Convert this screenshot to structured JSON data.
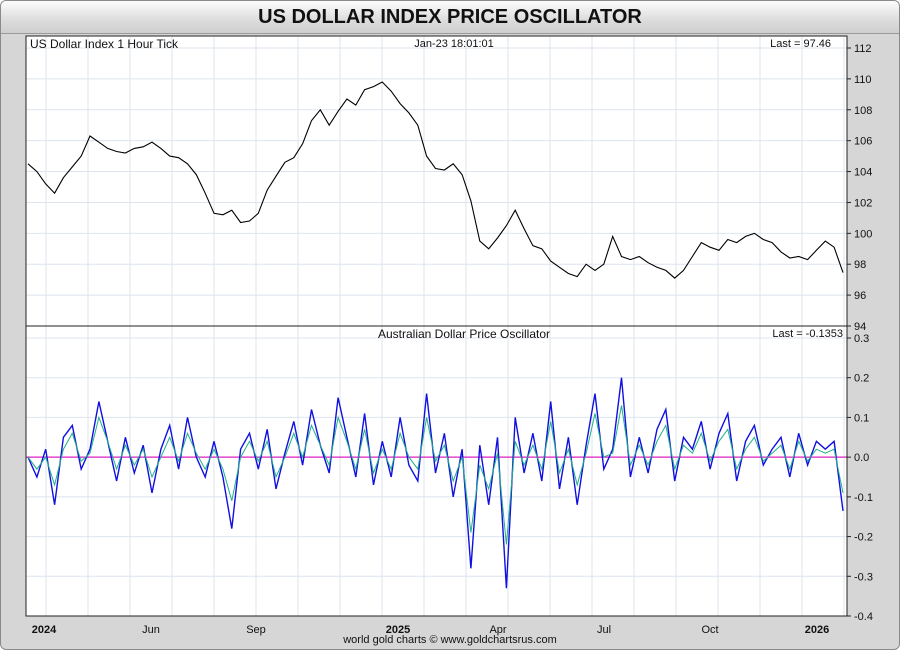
{
  "title": "US DOLLAR INDEX PRICE OSCILLATOR",
  "footer": "world gold charts © www.goldchartsrus.com",
  "colors": {
    "grid": "#dde4ee",
    "price": "#000000",
    "oscillator": "#1010e0",
    "signal": "#20b08a",
    "zero": "#e020c0"
  },
  "chart_data": [
    {
      "type": "line",
      "panel": "top",
      "label_left": "US Dollar Index 1 Hour Tick",
      "label_center": "Jan-23  18:01:01",
      "label_right": "Last = 97.46",
      "ylim": [
        94,
        112
      ],
      "yticks": [
        "94",
        "96",
        "98",
        "100",
        "102",
        "104",
        "106",
        "108",
        "110",
        "112"
      ],
      "x_ticks": [
        "2024",
        "Jun",
        "Sep",
        "2025",
        "Apr",
        "Jul",
        "Oct",
        "2026"
      ],
      "series": [
        {
          "values": [
            104.5,
            104.0,
            103.2,
            102.6,
            103.6,
            104.3,
            105.0,
            106.3,
            105.9,
            105.5,
            105.3,
            105.2,
            105.5,
            105.6,
            105.9,
            105.5,
            105.0,
            104.9,
            104.5,
            103.8,
            102.6,
            101.3,
            101.2,
            101.5,
            100.7,
            100.8,
            101.3,
            102.8,
            103.7,
            104.6,
            104.9,
            105.8,
            107.3,
            108.0,
            107.0,
            107.9,
            108.7,
            108.3,
            109.3,
            109.5,
            109.8,
            109.2,
            108.4,
            107.8,
            107.0,
            105.0,
            104.2,
            104.1,
            104.5,
            103.8,
            102.1,
            99.5,
            99.0,
            99.7,
            100.5,
            101.5,
            100.3,
            99.2,
            99.0,
            98.2,
            97.8,
            97.4,
            97.2,
            98.0,
            97.6,
            98.0,
            99.8,
            98.5,
            98.3,
            98.5,
            98.1,
            97.8,
            97.6,
            97.1,
            97.6,
            98.5,
            99.4,
            99.1,
            98.9,
            99.6,
            99.4,
            99.8,
            100.0,
            99.6,
            99.4,
            98.8,
            98.4,
            98.5,
            98.3,
            98.9,
            99.5,
            99.1,
            97.46
          ]
        }
      ]
    },
    {
      "type": "line",
      "panel": "bottom",
      "label_center": "Australian Dollar Price Oscillator",
      "label_right": "Last = -0.1353",
      "ylim": [
        -0.4,
        0.3
      ],
      "yticks": [
        "0.3",
        "0.2",
        "0.1",
        "0.0",
        "-0.1",
        "-0.2",
        "-0.3",
        "-0.4"
      ],
      "series": [
        {
          "values": [
            0.0,
            -0.05,
            0.02,
            -0.12,
            0.05,
            0.08,
            -0.03,
            0.02,
            0.14,
            0.04,
            -0.06,
            0.05,
            -0.04,
            0.03,
            -0.09,
            0.02,
            0.08,
            -0.03,
            0.1,
            0.0,
            -0.05,
            0.04,
            -0.05,
            -0.18,
            0.02,
            0.06,
            -0.03,
            0.07,
            -0.08,
            0.01,
            0.09,
            -0.02,
            0.12,
            0.03,
            -0.04,
            0.15,
            0.05,
            -0.05,
            0.11,
            -0.07,
            0.04,
            -0.05,
            0.1,
            -0.02,
            -0.06,
            0.16,
            -0.04,
            0.06,
            -0.1,
            0.02,
            -0.28,
            0.03,
            -0.12,
            0.05,
            -0.33,
            0.1,
            -0.04,
            0.06,
            -0.06,
            0.14,
            -0.08,
            0.05,
            -0.12,
            0.03,
            0.16,
            -0.03,
            0.02,
            0.2,
            -0.05,
            0.05,
            -0.04,
            0.07,
            0.12,
            -0.06,
            0.05,
            0.02,
            0.09,
            -0.03,
            0.06,
            0.11,
            -0.06,
            0.04,
            0.08,
            -0.02,
            0.02,
            0.05,
            -0.05,
            0.06,
            -0.02,
            0.04,
            0.02,
            0.04,
            -0.1353
          ]
        },
        {
          "values": [
            0.0,
            -0.03,
            0.0,
            -0.07,
            0.02,
            0.06,
            -0.01,
            0.01,
            0.1,
            0.04,
            -0.03,
            0.03,
            -0.02,
            0.02,
            -0.05,
            0.0,
            0.05,
            -0.01,
            0.06,
            0.01,
            -0.03,
            0.02,
            -0.03,
            -0.11,
            0.0,
            0.04,
            -0.01,
            0.04,
            -0.05,
            0.0,
            0.06,
            0.0,
            0.08,
            0.03,
            -0.02,
            0.1,
            0.04,
            -0.03,
            0.07,
            -0.04,
            0.02,
            -0.03,
            0.06,
            0.0,
            -0.03,
            0.1,
            -0.01,
            0.03,
            -0.06,
            0.0,
            -0.19,
            -0.02,
            -0.08,
            0.01,
            -0.22,
            0.04,
            -0.02,
            0.03,
            -0.03,
            0.09,
            -0.04,
            0.02,
            -0.07,
            0.01,
            0.11,
            0.0,
            0.01,
            0.13,
            -0.02,
            0.03,
            -0.02,
            0.04,
            0.08,
            -0.03,
            0.03,
            0.01,
            0.06,
            -0.01,
            0.04,
            0.07,
            -0.03,
            0.02,
            0.05,
            -0.01,
            0.01,
            0.03,
            -0.03,
            0.04,
            -0.01,
            0.02,
            0.01,
            0.02,
            -0.09
          ]
        }
      ]
    }
  ]
}
